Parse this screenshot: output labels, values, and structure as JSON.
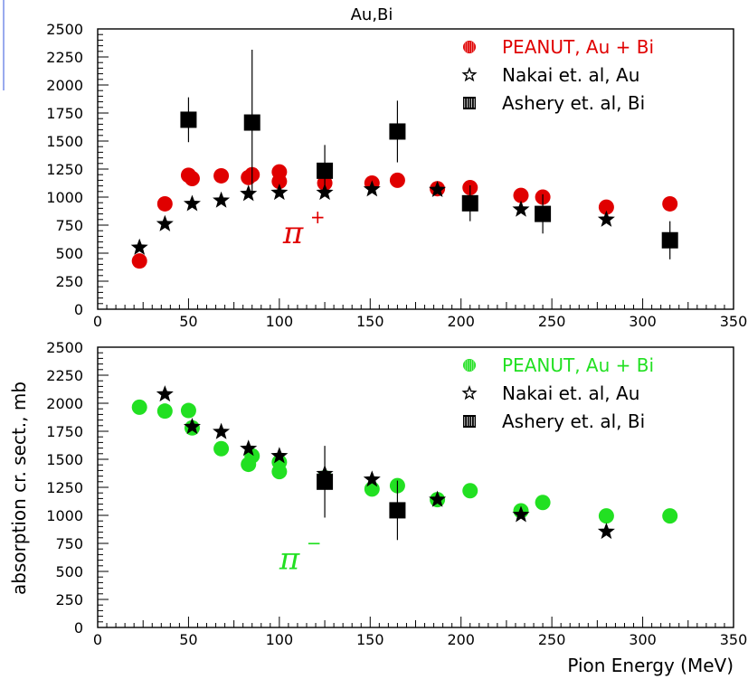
{
  "figure": {
    "title": "Au,Bi",
    "xlabel": "Pion Energy (MeV)",
    "ylabel": "absorption cr. sect., mb"
  },
  "chart_data": [
    {
      "type": "scatter",
      "title": "Au,Bi",
      "xlabel": "",
      "ylabel": "",
      "xlim": [
        0,
        350
      ],
      "ylim": [
        0,
        2500
      ],
      "x_ticks": [
        0,
        50,
        100,
        150,
        200,
        250,
        300,
        350
      ],
      "y_ticks": [
        0,
        250,
        500,
        750,
        1000,
        1250,
        1500,
        1750,
        2000,
        2250,
        2500
      ],
      "annotation": {
        "pion": "π",
        "charge": "+",
        "color": "#e00000"
      },
      "legend_position": "top-right",
      "series": [
        {
          "name": "PEANUT, Au + Bi",
          "marker": "circle",
          "color": "#e00000",
          "points": [
            [
              23,
              430
            ],
            [
              37,
              940
            ],
            [
              50,
              1195
            ],
            [
              52,
              1165
            ],
            [
              68,
              1190
            ],
            [
              83,
              1175
            ],
            [
              85,
              1200
            ],
            [
              100,
              1225
            ],
            [
              100,
              1140
            ],
            [
              125,
              1125
            ],
            [
              151,
              1125
            ],
            [
              165,
              1150
            ],
            [
              187,
              1075
            ],
            [
              205,
              1085
            ],
            [
              233,
              1015
            ],
            [
              245,
              1000
            ],
            [
              280,
              910
            ],
            [
              315,
              940
            ]
          ]
        },
        {
          "name": "Nakai et. al, Au",
          "marker": "star",
          "color": "#000000",
          "points": [
            [
              23,
              550
            ],
            [
              37,
              760
            ],
            [
              52,
              940
            ],
            [
              68,
              970
            ],
            [
              83,
              1030
            ],
            [
              100,
              1040
            ],
            [
              125,
              1040
            ],
            [
              151,
              1070
            ],
            [
              187,
              1065
            ],
            [
              233,
              890
            ],
            [
              280,
              800
            ]
          ]
        },
        {
          "name": "Ashery et. al, Bi",
          "marker": "square",
          "color": "#000000",
          "points": [
            [
              50,
              1690,
              200
            ],
            [
              85,
              1665,
              650
            ],
            [
              125,
              1235,
              230
            ],
            [
              165,
              1585,
              275
            ],
            [
              205,
              945,
              160
            ],
            [
              245,
              850,
              175
            ],
            [
              315,
              615,
              170
            ]
          ]
        }
      ]
    },
    {
      "type": "scatter",
      "title": "",
      "xlabel": "Pion Energy (MeV)",
      "ylabel": "absorption cr. sect., mb",
      "xlim": [
        0,
        350
      ],
      "ylim": [
        0,
        2500
      ],
      "x_ticks": [
        0,
        50,
        100,
        150,
        200,
        250,
        300,
        350
      ],
      "y_ticks": [
        0,
        250,
        500,
        750,
        1000,
        1250,
        1500,
        1750,
        2000,
        2250,
        2500
      ],
      "annotation": {
        "pion": "π",
        "charge": "−",
        "color": "#22e022"
      },
      "legend_position": "top-right",
      "series": [
        {
          "name": "PEANUT, Au + Bi",
          "marker": "circle",
          "color": "#22e022",
          "points": [
            [
              23,
              1965
            ],
            [
              37,
              1930
            ],
            [
              50,
              1935
            ],
            [
              52,
              1780
            ],
            [
              68,
              1595
            ],
            [
              83,
              1455
            ],
            [
              85,
              1530
            ],
            [
              100,
              1475
            ],
            [
              100,
              1390
            ],
            [
              125,
              1335
            ],
            [
              151,
              1235
            ],
            [
              165,
              1265
            ],
            [
              187,
              1140
            ],
            [
              205,
              1220
            ],
            [
              233,
              1040
            ],
            [
              245,
              1115
            ],
            [
              280,
              995
            ],
            [
              315,
              995
            ]
          ]
        },
        {
          "name": "Nakai et. al, Au",
          "marker": "star",
          "color": "#000000",
          "points": [
            [
              37,
              2080
            ],
            [
              52,
              1790
            ],
            [
              68,
              1745
            ],
            [
              83,
              1595
            ],
            [
              100,
              1530
            ],
            [
              125,
              1370
            ],
            [
              151,
              1320
            ],
            [
              187,
              1140
            ],
            [
              233,
              1005
            ],
            [
              280,
              855
            ]
          ]
        },
        {
          "name": "Ashery et. al, Bi",
          "marker": "square",
          "color": "#000000",
          "points": [
            [
              125,
              1300,
              320
            ],
            [
              165,
              1045,
              265
            ]
          ]
        }
      ]
    }
  ]
}
